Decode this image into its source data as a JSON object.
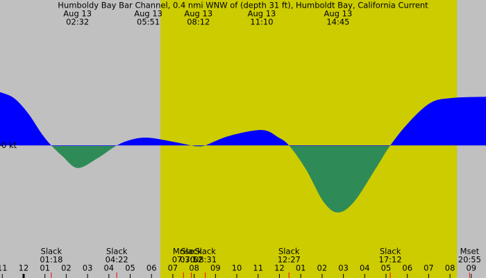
{
  "chart_data": {
    "type": "area",
    "title": "Humboldy Bay Bar Channel, 0.4 nmi WNW of (depth 31 ft), Humboldt Bay, California Current",
    "background": "#c0c0c0",
    "daylight_color": "#cccc00",
    "daylight": [
      6.42,
      20.33
    ],
    "flood_color": "#0000ff",
    "ebb_color": "#2e8b57",
    "xlim": [
      -1.107,
      21.69
    ],
    "ylim": [
      -4.0,
      4.2
    ],
    "yticks": [
      {
        "value": 0,
        "label": "0 kt"
      }
    ],
    "xticks": [
      {
        "value": -1,
        "label": "11"
      },
      {
        "value": 0,
        "label": "12"
      },
      {
        "value": 1,
        "label": "01"
      },
      {
        "value": 2,
        "label": "02"
      },
      {
        "value": 3,
        "label": "03"
      },
      {
        "value": 4,
        "label": "04"
      },
      {
        "value": 5,
        "label": "05"
      },
      {
        "value": 6,
        "label": "06"
      },
      {
        "value": 7,
        "label": "07"
      },
      {
        "value": 8,
        "label": "08"
      },
      {
        "value": 9,
        "label": "09"
      },
      {
        "value": 10,
        "label": "10"
      },
      {
        "value": 11,
        "label": "11"
      },
      {
        "value": 12,
        "label": "12"
      },
      {
        "value": 13,
        "label": "01"
      },
      {
        "value": 14,
        "label": "02"
      },
      {
        "value": 15,
        "label": "03"
      },
      {
        "value": 16,
        "label": "04"
      },
      {
        "value": 17,
        "label": "05"
      },
      {
        "value": 18,
        "label": "06"
      },
      {
        "value": 19,
        "label": "07"
      },
      {
        "value": 20,
        "label": "08"
      },
      {
        "value": 21,
        "label": "09"
      }
    ],
    "x": [
      -1.107,
      -0.456,
      0.195,
      0.847,
      1.3,
      1.82,
      2.53,
      3.45,
      4.37,
      5.08,
      5.85,
      7.04,
      7.87,
      8.2,
      8.52,
      9.64,
      11.17,
      11.93,
      12.45,
      13.24,
      14.07,
      14.75,
      15.5,
      16.5,
      17.2,
      18.1,
      19.1,
      20.08,
      21.69
    ],
    "values": [
      1.8,
      1.6,
      1.1,
      0.4,
      0,
      -0.36,
      -0.76,
      -0.44,
      0,
      0.2,
      0.26,
      0.12,
      0,
      -0.04,
      0,
      0.32,
      0.52,
      0.28,
      0,
      -0.8,
      -1.9,
      -2.26,
      -1.9,
      -0.8,
      0,
      0.8,
      1.44,
      1.6,
      1.64
    ],
    "peaks": [
      {
        "date": "Aug 13",
        "time": "02:32",
        "hour": 2.53
      },
      {
        "date": "Aug 13",
        "time": "05:51",
        "hour": 5.85
      },
      {
        "date": "Aug 13",
        "time": "08:12",
        "hour": 8.2
      },
      {
        "date": "Aug 13",
        "time": "11:10",
        "hour": 11.17
      },
      {
        "date": "Aug 13",
        "time": "14:45",
        "hour": 14.75
      }
    ],
    "events": [
      {
        "label": "Slack",
        "time": "01:18",
        "hour": 1.3
      },
      {
        "label": "Slack",
        "time": "04:22",
        "hour": 4.37
      },
      {
        "label": "Mrise",
        "time": "07:30",
        "hour": 7.5
      },
      {
        "label": "Slack",
        "time": "07:52",
        "hour": 7.87
      },
      {
        "label": "Slack",
        "time": "08:31",
        "hour": 8.52
      },
      {
        "label": "Slack",
        "time": "12:27",
        "hour": 12.45
      },
      {
        "label": "Slack",
        "time": "17:12",
        "hour": 17.2
      },
      {
        "label": "Mset",
        "time": "20:55",
        "hour": 20.92
      }
    ]
  }
}
